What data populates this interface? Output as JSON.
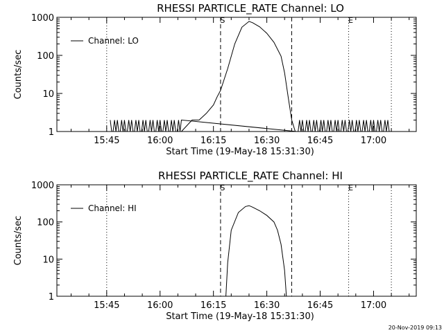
{
  "footer": {
    "timestamp": "20-Nov-2019 09:13"
  },
  "chart_data": [
    {
      "type": "line",
      "title": "RHESSI PARTICLE_RATE Channel: LO",
      "xlabel": "Start Time (19-May-18 15:31:30)",
      "ylabel": "Counts/sec",
      "y_scale": "log",
      "ylim": [
        1,
        1000
      ],
      "xlim": [
        "15:31:30",
        "17:12:00"
      ],
      "x_ticks": [
        "15:45",
        "16:00",
        "16:15",
        "16:30",
        "16:45",
        "17:00"
      ],
      "y_ticks": [
        "1",
        "10",
        "100",
        "1000"
      ],
      "grid": false,
      "legend": {
        "position": "top-left",
        "entries": [
          "Channel: LO"
        ]
      },
      "markers": [
        {
          "time": "15:45",
          "style": "dotted",
          "label": ""
        },
        {
          "time": "16:17",
          "style": "dashed",
          "label": "S"
        },
        {
          "time": "16:37",
          "style": "dashed",
          "label": ""
        },
        {
          "time": "16:53",
          "style": "dotted",
          "label": "E"
        },
        {
          "time": "17:05",
          "style": "dotted",
          "label": ""
        }
      ],
      "series": [
        {
          "name": "Channel: LO",
          "background": {
            "start": "15:46",
            "end": "17:05",
            "step_minutes": 0.4
          },
          "points": [
            [
              "16:06",
              1
            ],
            [
              "16:09",
              2
            ],
            [
              "16:11",
              2
            ],
            [
              "16:13",
              3
            ],
            [
              "16:15",
              5
            ],
            [
              "16:16",
              8
            ],
            [
              "16:17",
              12
            ],
            [
              "16:19",
              45
            ],
            [
              "16:21",
              200
            ],
            [
              "16:23",
              550
            ],
            [
              "16:25",
              780
            ],
            [
              "16:26",
              720
            ],
            [
              "16:28",
              560
            ],
            [
              "16:30",
              380
            ],
            [
              "16:32",
              220
            ],
            [
              "16:34",
              95
            ],
            [
              "16:35",
              35
            ],
            [
              "16:36",
              8
            ],
            [
              "16:37",
              2
            ],
            [
              "16:38",
              1
            ]
          ]
        }
      ]
    },
    {
      "type": "line",
      "title": "RHESSI PARTICLE_RATE Channel: HI",
      "xlabel": "Start Time (19-May-18 15:31:30)",
      "ylabel": "Counts/sec",
      "y_scale": "log",
      "ylim": [
        1,
        1000
      ],
      "xlim": [
        "15:31:30",
        "17:12:00"
      ],
      "x_ticks": [
        "15:45",
        "16:00",
        "16:15",
        "16:30",
        "16:45",
        "17:00"
      ],
      "y_ticks": [
        "1",
        "10",
        "100",
        "1000"
      ],
      "grid": false,
      "legend": {
        "position": "top-left",
        "entries": [
          "Channel: HI"
        ]
      },
      "markers": [
        {
          "time": "15:45",
          "style": "dotted",
          "label": ""
        },
        {
          "time": "16:17",
          "style": "dashed",
          "label": "S"
        },
        {
          "time": "16:37",
          "style": "dashed",
          "label": ""
        },
        {
          "time": "16:53",
          "style": "dotted",
          "label": "E"
        },
        {
          "time": "17:05",
          "style": "dotted",
          "label": ""
        }
      ],
      "series": [
        {
          "name": "Channel: HI",
          "points": [
            [
              "16:18.5",
              1
            ],
            [
              "16:19",
              8
            ],
            [
              "16:20",
              60
            ],
            [
              "16:22",
              180
            ],
            [
              "16:24",
              260
            ],
            [
              "16:25",
              275
            ],
            [
              "16:26",
              250
            ],
            [
              "16:28",
              200
            ],
            [
              "16:30",
              150
            ],
            [
              "16:32",
              100
            ],
            [
              "16:33",
              60
            ],
            [
              "16:34",
              25
            ],
            [
              "16:35",
              5
            ],
            [
              "16:35.5",
              1
            ]
          ]
        }
      ]
    }
  ]
}
